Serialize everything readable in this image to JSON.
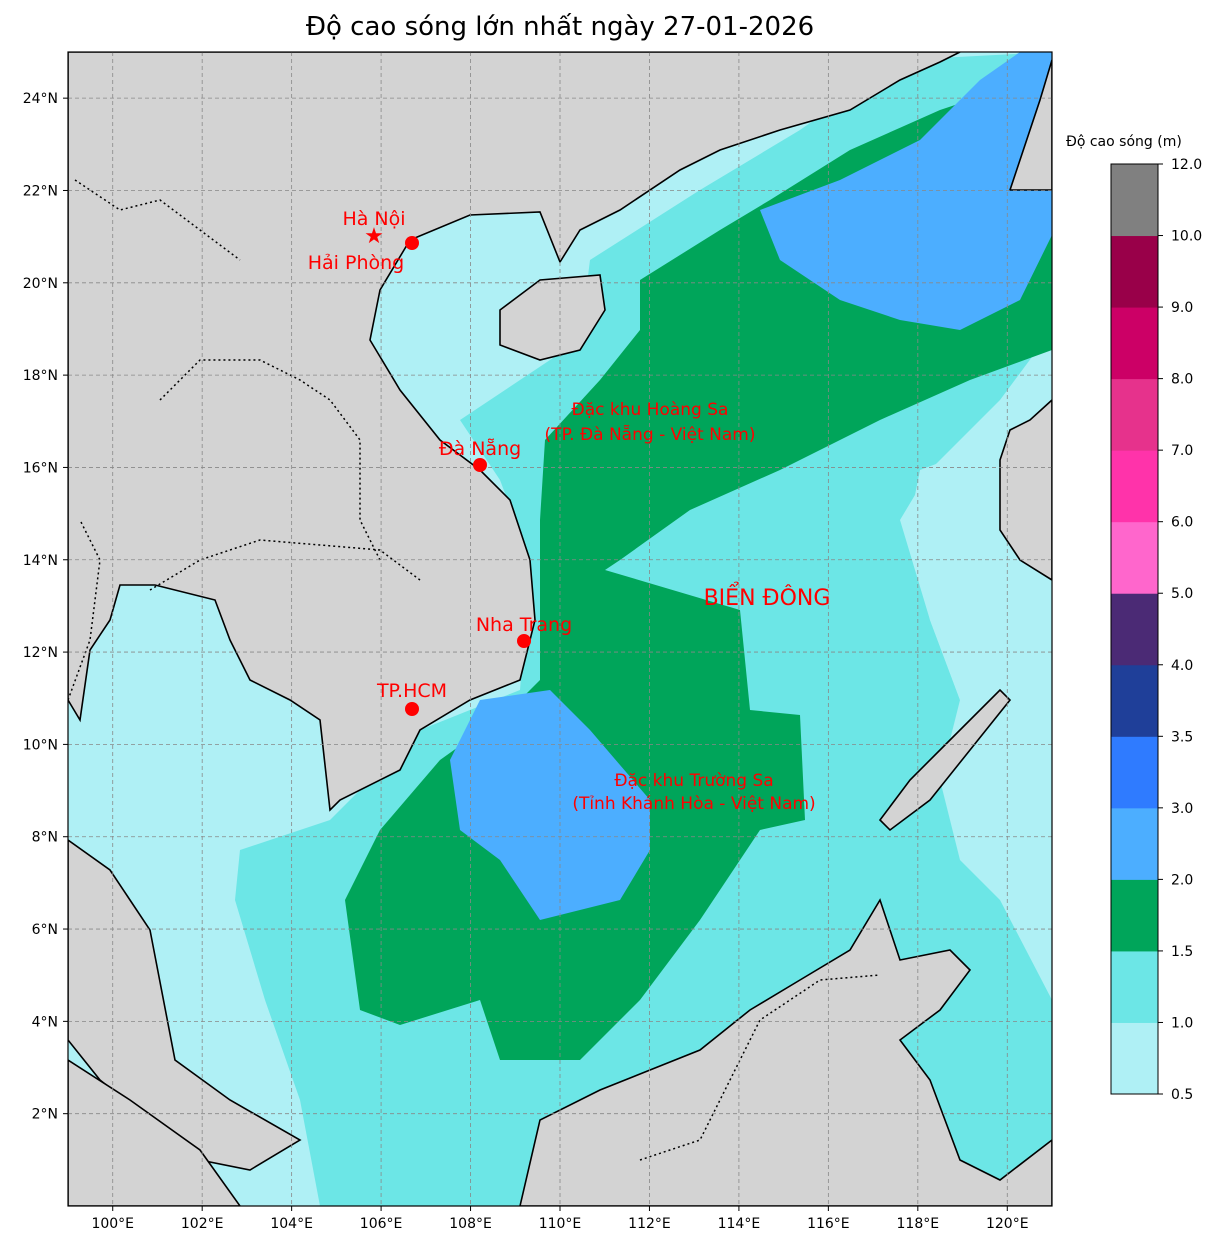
{
  "title": "Độ cao sóng lớn nhất ngày 27-01-2026",
  "colorbar": {
    "label": "Độ cao sóng (m)",
    "ticks": [
      "0.5",
      "1.0",
      "1.5",
      "2.0",
      "3.0",
      "3.5",
      "4.0",
      "5.0",
      "6.0",
      "7.0",
      "8.0",
      "9.0",
      "10.0",
      "12.0"
    ],
    "colors": [
      "#aff0f5",
      "#6ce6e6",
      "#00a55a",
      "#4caeff",
      "#2f7bff",
      "#1f3f99",
      "#4b2a75",
      "#ff66cc",
      "#ff33aa",
      "#e6328c",
      "#cc0066",
      "#990049",
      "#808080"
    ]
  },
  "axes": {
    "lat_ticks": [
      {
        "value": 2,
        "label": "2°N"
      },
      {
        "value": 4,
        "label": "4°N"
      },
      {
        "value": 6,
        "label": "6°N"
      },
      {
        "value": 8,
        "label": "8°N"
      },
      {
        "value": 10,
        "label": "10°N"
      },
      {
        "value": 12,
        "label": "12°N"
      },
      {
        "value": 14,
        "label": "14°N"
      },
      {
        "value": 16,
        "label": "16°N"
      },
      {
        "value": 18,
        "label": "18°N"
      },
      {
        "value": 20,
        "label": "20°N"
      },
      {
        "value": 22,
        "label": "22°N"
      },
      {
        "value": 24,
        "label": "24°N"
      }
    ],
    "lon_ticks": [
      {
        "value": 100,
        "label": "100°E"
      },
      {
        "value": 102,
        "label": "102°E"
      },
      {
        "value": 104,
        "label": "104°E"
      },
      {
        "value": 106,
        "label": "106°E"
      },
      {
        "value": 108,
        "label": "108°E"
      },
      {
        "value": 110,
        "label": "110°E"
      },
      {
        "value": 112,
        "label": "112°E"
      },
      {
        "value": 114,
        "label": "114°E"
      },
      {
        "value": 116,
        "label": "116°E"
      },
      {
        "value": 118,
        "label": "118°E"
      },
      {
        "value": 120,
        "label": "120°E"
      }
    ],
    "lon_range": [
      99,
      121
    ],
    "lat_range": [
      0,
      25
    ]
  },
  "labels": {
    "ha_noi": "Hà Nội",
    "hai_phong": "Hải Phòng",
    "da_nang": "Đà Nẵng",
    "nha_trang": "Nha Trang",
    "tphcm": "TP.HCM",
    "hoang_sa_1": "Đặc khu Hoàng Sa",
    "hoang_sa_2": "(TP. Đà Nẵng - Việt Nam)",
    "truong_sa_1": "Đặc khu Trường Sa",
    "truong_sa_2": "(Tỉnh Khánh Hòa - Việt Nam)",
    "bien_dong": "BIỂN ĐÔNG"
  },
  "colors": {
    "marker": "#ff0000",
    "land": "#d3d3d3"
  }
}
